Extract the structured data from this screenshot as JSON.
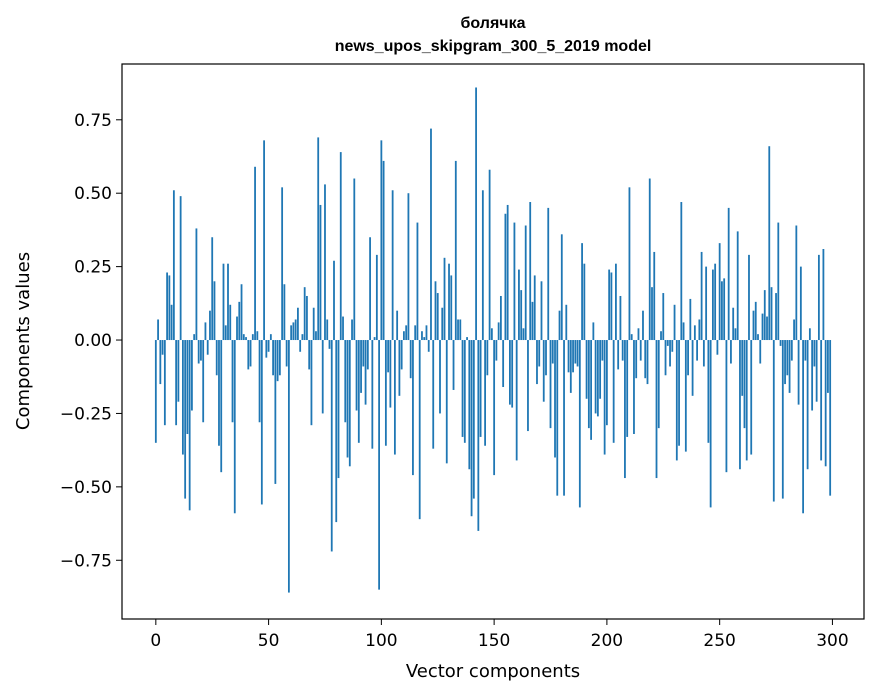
{
  "chart_data": {
    "type": "bar",
    "title_lines": [
      "болячка",
      "news_upos_skipgram_300_5_2019 model"
    ],
    "xlabel": "Vector components",
    "ylabel": "Components values",
    "xlim": [
      -15,
      314
    ],
    "ylim": [
      -0.95,
      0.94
    ],
    "xticks": [
      0,
      50,
      100,
      150,
      200,
      250,
      300
    ],
    "xtick_labels": [
      "0",
      "50",
      "100",
      "150",
      "200",
      "250",
      "300"
    ],
    "yticks": [
      -0.75,
      -0.5,
      -0.25,
      0.0,
      0.25,
      0.5,
      0.75
    ],
    "ytick_labels": [
      "−0.75",
      "−0.50",
      "−0.25",
      "0.00",
      "0.25",
      "0.50",
      "0.75"
    ],
    "bar_color": "#1f77b4",
    "values": [
      -0.35,
      0.07,
      -0.15,
      -0.05,
      -0.29,
      0.23,
      0.22,
      0.12,
      0.51,
      -0.29,
      -0.21,
      0.49,
      -0.39,
      -0.54,
      -0.32,
      -0.58,
      -0.24,
      0.02,
      0.38,
      -0.08,
      -0.07,
      -0.28,
      0.06,
      -0.05,
      0.1,
      0.35,
      0.2,
      -0.12,
      -0.36,
      -0.45,
      0.26,
      0.05,
      0.26,
      0.12,
      -0.28,
      -0.59,
      0.08,
      0.13,
      0.19,
      0.02,
      0.01,
      -0.1,
      -0.09,
      0.02,
      0.59,
      0.03,
      -0.28,
      -0.56,
      0.68,
      -0.06,
      -0.04,
      0.02,
      -0.12,
      -0.49,
      -0.14,
      -0.12,
      0.52,
      0.19,
      -0.09,
      -0.86,
      0.05,
      0.06,
      0.07,
      0.11,
      -0.04,
      0.02,
      0.18,
      0.15,
      -0.1,
      -0.29,
      0.11,
      0.03,
      0.69,
      0.46,
      -0.25,
      0.53,
      0.07,
      -0.03,
      -0.72,
      0.27,
      -0.62,
      -0.47,
      0.64,
      0.08,
      -0.28,
      -0.4,
      -0.43,
      0.07,
      0.55,
      -0.24,
      -0.35,
      -0.18,
      -0.09,
      -0.22,
      -0.1,
      0.35,
      -0.37,
      0.01,
      0.29,
      -0.85,
      0.68,
      0.61,
      -0.36,
      -0.11,
      -0.23,
      0.51,
      -0.39,
      0.1,
      -0.19,
      -0.1,
      0.03,
      0.05,
      0.5,
      -0.13,
      -0.46,
      0.05,
      0.4,
      -0.61,
      0.03,
      0.01,
      0.05,
      -0.04,
      0.72,
      -0.37,
      0.2,
      0.16,
      -0.25,
      0.11,
      0.28,
      -0.42,
      0.26,
      0.22,
      -0.17,
      0.61,
      0.07,
      0.07,
      -0.33,
      -0.35,
      0.01,
      -0.44,
      -0.6,
      -0.54,
      0.86,
      -0.65,
      -0.33,
      0.51,
      -0.36,
      -0.12,
      0.58,
      0.04,
      -0.46,
      -0.07,
      0.06,
      0.15,
      -0.16,
      0.43,
      0.46,
      -0.22,
      -0.23,
      0.4,
      -0.41,
      0.24,
      0.17,
      0.04,
      0.39,
      -0.31,
      0.47,
      0.13,
      0.22,
      -0.15,
      -0.09,
      0.2,
      -0.21,
      -0.12,
      0.45,
      -0.3,
      -0.08,
      -0.4,
      -0.53,
      0.1,
      0.36,
      -0.53,
      0.12,
      -0.11,
      -0.18,
      -0.11,
      -0.08,
      -0.09,
      -0.57,
      0.33,
      0.26,
      -0.2,
      -0.3,
      -0.34,
      0.06,
      -0.25,
      -0.26,
      -0.2,
      -0.07,
      -0.39,
      -0.29,
      0.24,
      0.23,
      -0.35,
      0.26,
      -0.1,
      0.15,
      -0.07,
      -0.47,
      -0.33,
      0.52,
      0.02,
      -0.32,
      -0.13,
      0.04,
      -0.07,
      0.1,
      -0.13,
      -0.15,
      0.55,
      0.18,
      0.3,
      -0.47,
      -0.3,
      0.03,
      0.16,
      -0.12,
      -0.02,
      -0.09,
      -0.04,
      0.12,
      -0.41,
      -0.36,
      0.47,
      0.06,
      -0.38,
      -0.12,
      0.14,
      -0.19,
      0.05,
      -0.07,
      0.07,
      0.3,
      -0.09,
      0.25,
      -0.35,
      -0.57,
      0.24,
      0.26,
      -0.05,
      0.33,
      0.2,
      0.21,
      -0.45,
      0.45,
      -0.08,
      0.11,
      0.04,
      0.37,
      -0.44,
      -0.19,
      -0.3,
      -0.41,
      0.29,
      -0.39,
      0.1,
      0.13,
      0.02,
      -0.08,
      0.09,
      0.17,
      0.08,
      0.66,
      0.18,
      -0.55,
      0.16,
      0.4,
      -0.02,
      -0.54,
      -0.15,
      -0.12,
      -0.18,
      -0.07,
      0.07,
      0.39,
      -0.22,
      0.25,
      -0.59,
      -0.07,
      -0.44,
      0.04,
      -0.24,
      -0.09,
      -0.21,
      0.29,
      -0.41,
      0.31,
      -0.43,
      -0.18,
      -0.53
    ]
  }
}
